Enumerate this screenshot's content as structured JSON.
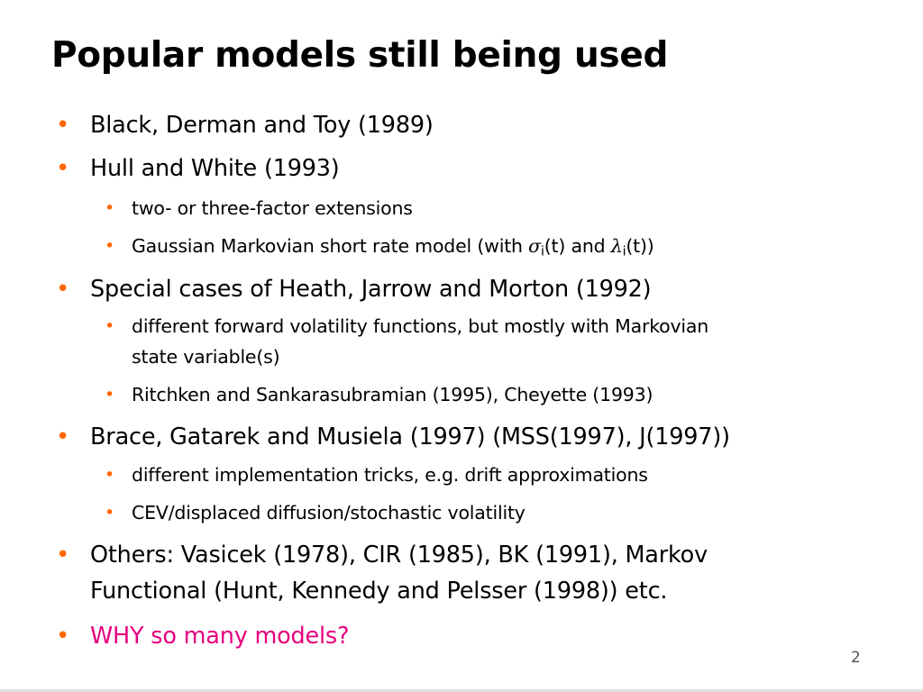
{
  "slide": {
    "title": "Popular models still being used",
    "page_number": "2",
    "bullet_glyph": "•",
    "accent_color": "#ff6600",
    "highlight_color": "#e6007e",
    "items": [
      {
        "level": 1,
        "text": "Black, Derman and Toy (1989)"
      },
      {
        "level": 1,
        "text": "Hull and White (1993)"
      },
      {
        "level": 2,
        "text": "two- or three-factor extensions"
      },
      {
        "level": 2,
        "text_prefix": "Gaussian Markovian short rate model (with ",
        "sigma_symbol": "σ",
        "sigma_subscript": "i",
        "middle_text": "(t) and ",
        "lambda_symbol": "λ",
        "lambda_subscript": "i",
        "text_suffix": "(t))"
      },
      {
        "level": 1,
        "text": "Special cases of Heath, Jarrow and Morton (1992)"
      },
      {
        "level": 2,
        "line1": "different forward volatility functions, but mostly with Markovian",
        "line2": "state variable(s)"
      },
      {
        "level": 2,
        "text": "Ritchken and Sankarasubramian (1995), Cheyette (1993)"
      },
      {
        "level": 1,
        "text": "Brace, Gatarek and Musiela (1997) (MSS(1997), J(1997))"
      },
      {
        "level": 2,
        "text": "different implementation tricks, e.g. drift approximations"
      },
      {
        "level": 2,
        "text": "CEV/displaced diffusion/stochastic volatility"
      },
      {
        "level": 1,
        "line1": "Others: Vasicek (1978), CIR (1985), BK (1991), Markov",
        "line2": "Functional (Hunt, Kennedy and Pelsser (1998)) etc."
      },
      {
        "level": 1,
        "text": "WHY so many models?",
        "highlighted": true
      }
    ]
  }
}
